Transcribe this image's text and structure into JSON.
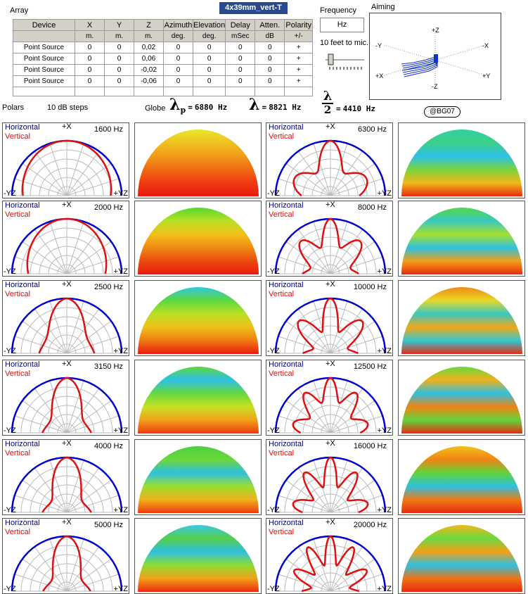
{
  "array_label": "Array",
  "preset_name": "4x39mm_vert-T",
  "table": {
    "headers": [
      "Device",
      "X",
      "Y",
      "Z",
      "Azimuth",
      "Elevation",
      "Delay",
      "Atten.",
      "Polarity"
    ],
    "units": [
      "",
      "m.",
      "m.",
      "m.",
      "deg.",
      "deg.",
      "mSec",
      "dB",
      "+/-"
    ],
    "rows": [
      [
        "Point Source",
        "0",
        "0",
        "0,02",
        "0",
        "0",
        "0",
        "0",
        "+"
      ],
      [
        "Point Source",
        "0",
        "0",
        "0,06",
        "0",
        "0",
        "0",
        "0",
        "+"
      ],
      [
        "Point Source",
        "0",
        "0",
        "-0,02",
        "0",
        "0",
        "0",
        "0",
        "+"
      ],
      [
        "Point Source",
        "0",
        "0",
        "-0,06",
        "0",
        "0",
        "0",
        "0",
        "+"
      ]
    ]
  },
  "frequency": {
    "label": "Frequency",
    "unit": "Hz",
    "distance_label": "10 feet to mic."
  },
  "aiming": {
    "label": "Aiming",
    "axes": {
      "pz": "+Z",
      "nz": "-Z",
      "py": "+Y",
      "ny": "-Y",
      "px": "+X",
      "nx": "-X"
    }
  },
  "polars_label": "Polars",
  "steps_label": "10 dB steps",
  "globe_label": "Globe",
  "lambda_p": {
    "symbol": "λ",
    "sub": "p",
    "eq": "=",
    "value": "6880 Hz"
  },
  "lambda": {
    "symbol": "λ",
    "eq": "=",
    "value": "8821 Hz"
  },
  "lambda_half": {
    "num": "λ",
    "den": "2",
    "eq": "=",
    "value": "4410 Hz"
  },
  "copyright": "@BG07",
  "legend": {
    "horizontal": "Horizontal",
    "vertical": "Vertical",
    "top_axis": "+X",
    "left_axis": "-YZ",
    "right_axis": "+YZ"
  },
  "colors": {
    "horizontal": "#0000cc",
    "vertical": "#dd1111"
  },
  "plots": [
    {
      "freq": "1600 Hz",
      "col": 0,
      "row": 0,
      "lobes": 0,
      "depth": 0.06,
      "width": 0.85,
      "globe": "warm"
    },
    {
      "freq": "2000 Hz",
      "col": 0,
      "row": 1,
      "lobes": 0,
      "depth": 0.1,
      "width": 0.78,
      "globe": "warm2"
    },
    {
      "freq": "2500 Hz",
      "col": 0,
      "row": 2,
      "lobes": 1,
      "depth": 0.35,
      "width": 0.72,
      "globe": "cool1"
    },
    {
      "freq": "3150 Hz",
      "col": 0,
      "row": 3,
      "lobes": 1,
      "depth": 0.45,
      "width": 0.68,
      "globe": "cool2"
    },
    {
      "freq": "4000 Hz",
      "col": 0,
      "row": 4,
      "lobes": 1,
      "depth": 0.5,
      "width": 0.7,
      "globe": "cool3"
    },
    {
      "freq": "5000 Hz",
      "col": 0,
      "row": 5,
      "lobes": 1,
      "depth": 0.5,
      "width": 0.68,
      "globe": "cool4"
    },
    {
      "freq": "6300 Hz",
      "col": 1,
      "row": 0,
      "lobes": 2,
      "depth": 0.45,
      "width": 0.8,
      "globe": "band1"
    },
    {
      "freq": "8000 Hz",
      "col": 1,
      "row": 1,
      "lobes": 3,
      "depth": 0.45,
      "width": 0.78,
      "globe": "band2"
    },
    {
      "freq": "10000 Hz",
      "col": 1,
      "row": 2,
      "lobes": 3,
      "depth": 0.55,
      "width": 0.82,
      "globe": "band3"
    },
    {
      "freq": "12500 Hz",
      "col": 1,
      "row": 3,
      "lobes": 4,
      "depth": 0.4,
      "width": 0.8,
      "globe": "band4"
    },
    {
      "freq": "16000 Hz",
      "col": 1,
      "row": 4,
      "lobes": 4,
      "depth": 0.5,
      "width": 0.8,
      "globe": "band5"
    },
    {
      "freq": "20000 Hz",
      "col": 1,
      "row": 5,
      "lobes": 5,
      "depth": 0.5,
      "width": 0.82,
      "globe": "band6"
    }
  ]
}
